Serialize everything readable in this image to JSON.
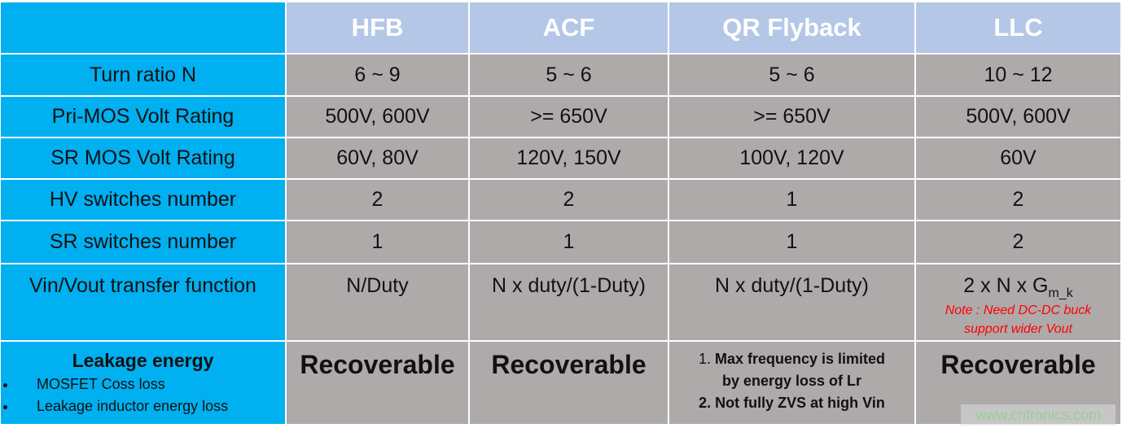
{
  "header": {
    "columns": [
      "",
      "HFB",
      "ACF",
      "QR Flyback",
      "LLC"
    ]
  },
  "rows": [
    {
      "label": "Turn ratio N",
      "values": [
        "6 ~ 9",
        "5 ~ 6",
        "5 ~ 6",
        "10 ~ 12"
      ]
    },
    {
      "label": "Pri-MOS Volt Rating",
      "values": [
        "500V, 600V",
        ">= 650V",
        ">= 650V",
        "500V, 600V"
      ]
    },
    {
      "label": "SR MOS Volt Rating",
      "values": [
        "60V, 80V",
        "120V, 150V",
        "100V, 120V",
        "60V"
      ]
    },
    {
      "label": "HV switches number",
      "values": [
        "2",
        "2",
        "1",
        "2"
      ]
    },
    {
      "label": "SR switches number",
      "values": [
        "1",
        "1",
        "1",
        "2"
      ]
    },
    {
      "label": "Vin/Vout transfer function",
      "values": [
        "N/Duty",
        "N x duty/(1-Duty)",
        "N x duty/(1-Duty)",
        "2 x N x G"
      ],
      "llc_subscript": "m_k",
      "llc_note": "Note : Need DC-DC buck support wider Vout"
    }
  ],
  "leakage": {
    "title": "Leakage energy",
    "bullets": [
      "MOSFET Coss loss",
      "Leakage inductor energy loss"
    ],
    "hfb": "Recoverable",
    "acf": "Recoverable",
    "qr_items": [
      {
        "num": "1.",
        "text": "Max frequency is limited"
      },
      {
        "num": "",
        "text": "by energy loss of Lr"
      },
      {
        "num": "2.",
        "text": "Not fully ZVS at high Vin"
      }
    ],
    "llc": "Recoverable"
  },
  "watermark": "www.cntronics.com",
  "colors": {
    "label_bg": "#00b0f0",
    "header_bg": "#b4c7e7",
    "cell_bg": "#aeaaaa",
    "note": "#ff0000"
  }
}
